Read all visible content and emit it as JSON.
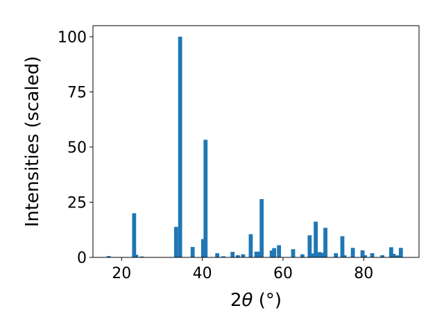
{
  "chart_data": {
    "type": "bar",
    "title": "",
    "xlabel": "2θ (°)",
    "ylabel": "Intensities (scaled)",
    "xlim": [
      12.9,
      93.7
    ],
    "ylim": [
      0,
      105
    ],
    "xticks": [
      20,
      40,
      60,
      80
    ],
    "yticks": [
      0,
      25,
      50,
      75,
      100
    ],
    "grid": false,
    "bar_color": "#1f77b4",
    "series": [
      {
        "x": [
          16.8,
          23.1,
          23.6,
          25.0,
          33.5,
          34.5,
          37.6,
          40.2,
          40.8,
          43.7,
          45.2,
          47.5,
          48.8,
          50.1,
          52.0,
          53.4,
          54.2,
          54.7,
          57.2,
          57.8,
          59.0,
          62.5,
          64.8,
          66.6,
          67.3,
          68.1,
          69.0,
          69.8,
          70.5,
          73.1,
          74.7,
          75.2,
          77.3,
          79.7,
          80.3,
          82.1,
          84.6,
          86.8,
          87.4,
          88.3,
          89.2
        ],
        "values": [
          0.6,
          20.0,
          1.2,
          0.4,
          13.8,
          100.0,
          4.7,
          8.3,
          53.3,
          1.9,
          0.5,
          2.5,
          1.0,
          1.4,
          10.5,
          2.6,
          2.6,
          26.4,
          3.1,
          4.2,
          5.5,
          3.7,
          1.4,
          10.0,
          1.8,
          16.2,
          2.4,
          2.1,
          13.4,
          1.9,
          9.6,
          1.0,
          4.3,
          3.2,
          1.0,
          1.9,
          1.0,
          4.6,
          1.6,
          0.9,
          4.3
        ]
      }
    ]
  }
}
